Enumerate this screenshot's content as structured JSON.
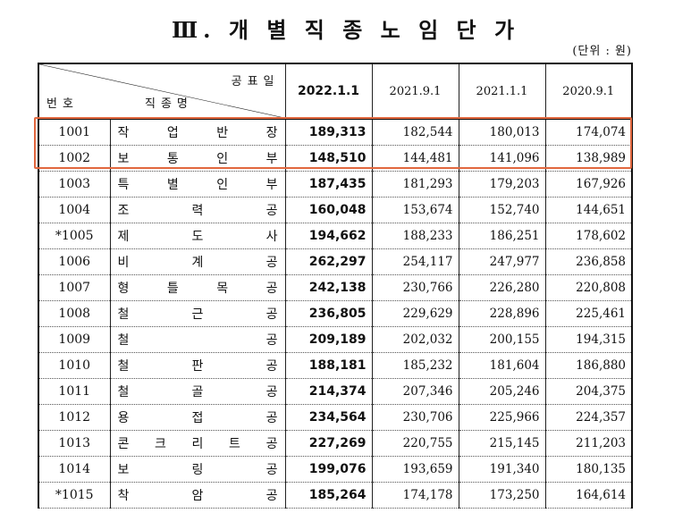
{
  "title": "Ⅲ. 개 별 직 종 노 임 단 가",
  "unit": "(단위 : 원)",
  "header": {
    "announce": "공표일",
    "no": "번호",
    "name": "직종명",
    "dates": [
      "2022.1.1",
      "2021.9.1",
      "2021.1.1",
      "2020.9.1"
    ]
  },
  "highlight_color": "#e2683f",
  "rows": [
    {
      "no": "1001",
      "name": [
        "작",
        "업",
        "반",
        "장"
      ],
      "v": [
        "189,313",
        "182,544",
        "180,013",
        "174,074"
      ]
    },
    {
      "no": "1002",
      "name": [
        "보",
        "통",
        "인",
        "부"
      ],
      "v": [
        "148,510",
        "144,481",
        "141,096",
        "138,989"
      ]
    },
    {
      "no": "1003",
      "name": [
        "특",
        "별",
        "인",
        "부"
      ],
      "v": [
        "187,435",
        "181,293",
        "179,203",
        "167,926"
      ]
    },
    {
      "no": "1004",
      "name": [
        "조",
        "력",
        "공"
      ],
      "v": [
        "160,048",
        "153,674",
        "152,740",
        "144,651"
      ]
    },
    {
      "no": "*1005",
      "name": [
        "제",
        "도",
        "사"
      ],
      "v": [
        "194,662",
        "188,233",
        "186,251",
        "178,602"
      ]
    },
    {
      "no": "1006",
      "name": [
        "비",
        "계",
        "공"
      ],
      "v": [
        "262,297",
        "254,117",
        "247,977",
        "236,858"
      ]
    },
    {
      "no": "1007",
      "name": [
        "형",
        "틀",
        "목",
        "공"
      ],
      "v": [
        "242,138",
        "230,766",
        "226,280",
        "220,808"
      ]
    },
    {
      "no": "1008",
      "name": [
        "철",
        "근",
        "공"
      ],
      "v": [
        "236,805",
        "229,629",
        "228,896",
        "225,461"
      ]
    },
    {
      "no": "1009",
      "name": [
        "철",
        "공"
      ],
      "v": [
        "209,189",
        "202,032",
        "200,155",
        "194,315"
      ]
    },
    {
      "no": "1010",
      "name": [
        "철",
        "판",
        "공"
      ],
      "v": [
        "188,181",
        "185,232",
        "181,604",
        "186,880"
      ]
    },
    {
      "no": "1011",
      "name": [
        "철",
        "골",
        "공"
      ],
      "v": [
        "214,374",
        "207,346",
        "205,246",
        "204,375"
      ]
    },
    {
      "no": "1012",
      "name": [
        "용",
        "접",
        "공"
      ],
      "v": [
        "234,564",
        "230,706",
        "225,966",
        "224,357"
      ]
    },
    {
      "no": "1013",
      "name": [
        "콘",
        "크",
        "리",
        "트",
        "공"
      ],
      "v": [
        "227,269",
        "220,755",
        "215,145",
        "211,203"
      ]
    },
    {
      "no": "1014",
      "name": [
        "보",
        "링",
        "공"
      ],
      "v": [
        "199,076",
        "193,659",
        "191,340",
        "180,135"
      ]
    },
    {
      "no": "*1015",
      "name": [
        "착",
        "암",
        "공"
      ],
      "v": [
        "185,264",
        "174,178",
        "173,250",
        "164,614"
      ]
    }
  ]
}
